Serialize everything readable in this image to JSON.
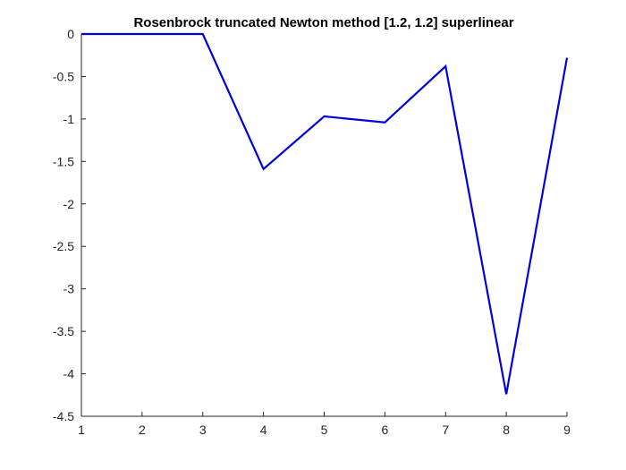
{
  "chart_data": {
    "type": "line",
    "title": "Rosenbrock truncated Newton method [1.2, 1.2] superlinear",
    "xlabel": "",
    "ylabel": "",
    "x": [
      1,
      2,
      3,
      4,
      5,
      6,
      7,
      8,
      9
    ],
    "xlim": [
      1,
      9
    ],
    "ylim": [
      -4.5,
      0
    ],
    "xticks": [
      1,
      2,
      3,
      4,
      5,
      6,
      7,
      8,
      9
    ],
    "xtick_labels": [
      "1",
      "2",
      "3",
      "4",
      "5",
      "6",
      "7",
      "8",
      "9"
    ],
    "yticks": [
      0,
      -0.5,
      -1,
      -1.5,
      -2,
      -2.5,
      -3,
      -3.5,
      -4,
      -4.5
    ],
    "ytick_labels": [
      "0",
      "-0.5",
      "-1",
      "-1.5",
      "-2",
      "-2.5",
      "-3",
      "-3.5",
      "-4",
      "-4.5"
    ],
    "grid": false,
    "legend": "none",
    "series": [
      {
        "values": [
          0,
          0,
          0,
          -1.59,
          -0.97,
          -1.04,
          -0.38,
          -4.24,
          -0.28
        ],
        "color": "#0000e0"
      }
    ]
  }
}
